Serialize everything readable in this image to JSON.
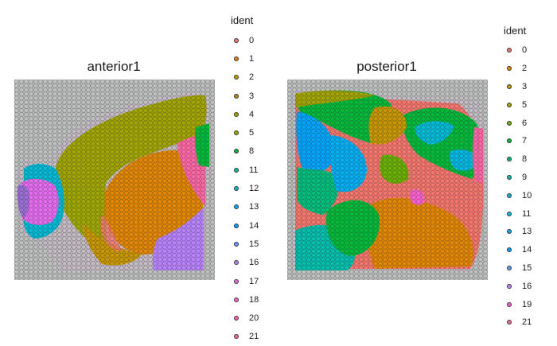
{
  "colors": {
    "0": "#F8766D",
    "1": "#E58700",
    "2": "#E58700",
    "3": "#C99800",
    "4": "#A3A500",
    "5": "#A3A500",
    "6": "#6BB100",
    "7": "#00BA38",
    "8": "#00BA38",
    "9": "#00C0AF",
    "10": "#00BCD8",
    "11": "#00BCD8",
    "12": "#00B0F6",
    "13": "#00B0F6",
    "14": "#619CFF",
    "15": "#B983FF",
    "16": "#B983FF",
    "17": "#E76BF3",
    "18": "#E76BF3",
    "19": "#FD61D1",
    "20": "#FF67A4",
    "21": "#FF67A4"
  },
  "chart_data": [
    {
      "type": "scatter",
      "title": "anterior1",
      "legend_title": "ident",
      "legend_placement": "right",
      "clusters": [
        "0",
        "1",
        "2",
        "3",
        "4",
        "5",
        "8",
        "11",
        "12",
        "13",
        "14",
        "15",
        "16",
        "17",
        "18",
        "20",
        "21"
      ],
      "legend_colors": [
        "#F8766D",
        "#E58700",
        "#C99800",
        "#C08A00",
        "#A3A500",
        "#9FA800",
        "#00BA38",
        "#00BFA0",
        "#00BCD8",
        "#00B0F6",
        "#00A5FF",
        "#619CFF",
        "#B983FF",
        "#E76BF3",
        "#F564E3",
        "#FF64B0",
        "#FF6C91"
      ],
      "regions": [
        {
          "cluster": "5",
          "shape": "olive cortex (top)"
        },
        {
          "cluster": "1",
          "shape": "orange striatum (center)"
        },
        {
          "cluster": "16",
          "shape": "purple lower right"
        },
        {
          "cluster": "18",
          "shape": "magenta olfactory bulb (left)"
        },
        {
          "cluster": "12",
          "shape": "cyan olfactory (left)"
        },
        {
          "cluster": "8",
          "shape": "green right edge"
        }
      ]
    },
    {
      "type": "scatter",
      "title": "posterior1",
      "legend_title": "ident",
      "legend_placement": "right",
      "clusters": [
        "0",
        "2",
        "3",
        "5",
        "6",
        "7",
        "8",
        "9",
        "10",
        "11",
        "13",
        "14",
        "15",
        "16",
        "19",
        "21"
      ],
      "legend_colors": [
        "#F8766D",
        "#E58700",
        "#C99800",
        "#A3A500",
        "#6BB100",
        "#00BA38",
        "#00BF7D",
        "#00C0AF",
        "#00BCD8",
        "#00B9E3",
        "#00B0F6",
        "#00A5FF",
        "#619CFF",
        "#B983FF",
        "#FD61D1",
        "#FF67A4"
      ]
    }
  ]
}
